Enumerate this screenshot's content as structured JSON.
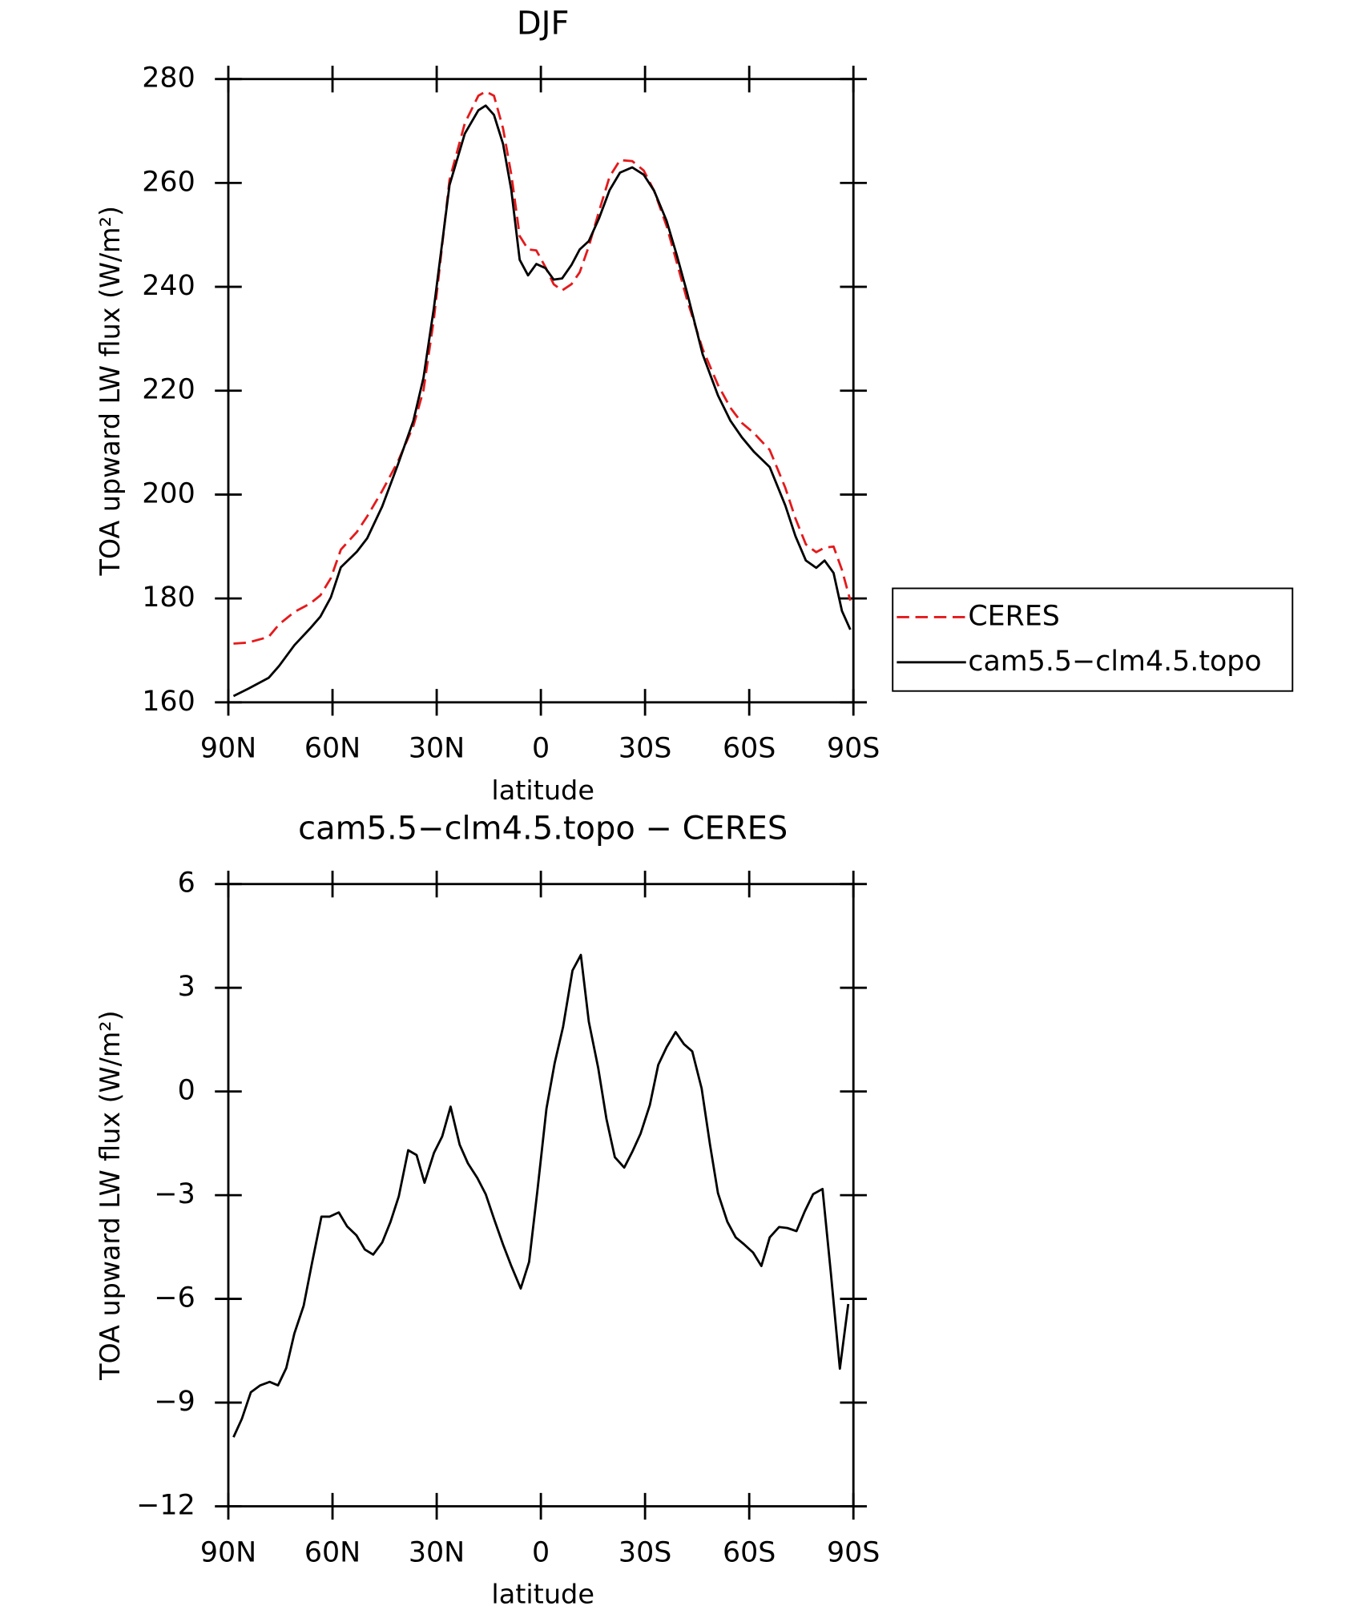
{
  "chart_data": [
    {
      "type": "line",
      "title": "DJF",
      "xlabel": "latitude",
      "ylabel": "TOA upward LW flux (W/m²)",
      "xlim": [
        90,
        -90
      ],
      "ylim": [
        160,
        280
      ],
      "xticks": [
        {
          "value": 90,
          "label": "90N"
        },
        {
          "value": 60,
          "label": "60N"
        },
        {
          "value": 30,
          "label": "30N"
        },
        0,
        {
          "value": -30,
          "label": "30S"
        },
        {
          "value": -60,
          "label": "60S"
        },
        {
          "value": -90,
          "label": "90S"
        }
      ],
      "yticks": [
        160,
        180,
        200,
        220,
        240,
        260,
        280
      ],
      "legend": "right",
      "x": [
        88.5,
        84.3,
        78.4,
        75.4,
        71,
        66.5,
        63.5,
        60.5,
        57.6,
        53,
        50,
        45.7,
        41.2,
        36.7,
        33.8,
        30.8,
        26.3,
        21.9,
        18,
        15.9,
        13.5,
        10.9,
        8.5,
        6.1,
        3.7,
        1.3,
        -1.3,
        -3.7,
        -6.1,
        -8.8,
        -11.2,
        -13.8,
        -16.8,
        -19.8,
        -22.8,
        -26.3,
        -29.6,
        -32.6,
        -36.2,
        -39.1,
        -42.1,
        -46.6,
        -51,
        -54.6,
        -57.9,
        -61.4,
        -65.9,
        -70.4,
        -73.3,
        -76.3,
        -79.3,
        -81.7,
        -84.3,
        -86.7,
        -89.1
      ],
      "series": [
        {
          "name": "CERES",
          "color": "#e41a1c",
          "dash": true,
          "values": [
            171.3,
            171.5,
            172.6,
            175,
            177.4,
            179,
            180.6,
            183.9,
            189.4,
            192.8,
            195.8,
            200.7,
            206.3,
            213.2,
            220.1,
            233.9,
            260.6,
            271.5,
            276.8,
            277.6,
            276.8,
            270.5,
            261.6,
            249.8,
            247.2,
            247,
            243.8,
            240.5,
            239.3,
            240.5,
            242.8,
            247.8,
            254.7,
            261.2,
            264.4,
            264.2,
            262.4,
            258.5,
            251.7,
            244.8,
            237.5,
            228,
            221.1,
            216.7,
            213.8,
            211.8,
            208.6,
            201.3,
            195.4,
            190.4,
            188.9,
            189.8,
            190,
            185.5,
            179.6
          ]
        },
        {
          "name": "cam5.5−clm4.5.topo",
          "color": "#000000",
          "dash": false,
          "values": [
            161.2,
            162.6,
            164.7,
            167,
            171,
            174.2,
            176.5,
            180.2,
            186,
            189,
            191.6,
            197.7,
            205.7,
            214.2,
            222.5,
            236,
            259.6,
            269.5,
            274,
            274.9,
            273.1,
            267.5,
            258.6,
            245.2,
            242.2,
            244.4,
            243.6,
            241.4,
            241.6,
            244.2,
            247.2,
            248.8,
            253.3,
            258.6,
            262,
            263,
            261.6,
            258.5,
            252.7,
            246.2,
            238.9,
            227,
            219.1,
            214.2,
            211,
            208.2,
            205.3,
            197.9,
            192,
            187.3,
            185.9,
            187.3,
            184.9,
            177.6,
            174
          ]
        }
      ]
    },
    {
      "type": "line",
      "title": "cam5.5−clm4.5.topo − CERES",
      "xlabel": "latitude",
      "ylabel": "TOA upward LW flux (W/m²)",
      "xlim": [
        90,
        -90
      ],
      "ylim": [
        -12,
        6
      ],
      "xticks": [
        {
          "value": 90,
          "label": "90N"
        },
        {
          "value": 60,
          "label": "60N"
        },
        {
          "value": 30,
          "label": "30N"
        },
        0,
        {
          "value": -30,
          "label": "30S"
        },
        {
          "value": -60,
          "label": "60S"
        },
        {
          "value": -90,
          "label": "90S"
        }
      ],
      "yticks": [
        -12,
        -9,
        -6,
        -3,
        0,
        3,
        6
      ],
      "x": [
        88.5,
        86.1,
        83.5,
        80.8,
        78.1,
        75.7,
        73.3,
        71,
        68.3,
        65.9,
        63.2,
        60.8,
        58.2,
        55.8,
        53.1,
        50.7,
        48.3,
        45.7,
        43.3,
        40.9,
        38.2,
        35.8,
        33.5,
        30.8,
        28.4,
        26,
        23.4,
        21,
        18.3,
        15.9,
        13.5,
        10.9,
        8.5,
        5.8,
        3.4,
        1,
        -1.6,
        -4,
        -6.4,
        -9.1,
        -11.5,
        -13.8,
        -16.5,
        -18.9,
        -21.3,
        -24,
        -26.3,
        -28.7,
        -31.4,
        -33.8,
        -36.2,
        -38.8,
        -41.2,
        -43.6,
        -46.3,
        -48.7,
        -51,
        -53.7,
        -56.1,
        -58.5,
        -61.1,
        -63.5,
        -65.9,
        -68.6,
        -71,
        -73.6,
        -76,
        -78.4,
        -81.1,
        -83.5,
        -86.1,
        -88.5
      ],
      "series": [
        {
          "color": "#000000",
          "dash": false,
          "values": [
            -10.0,
            -9.47,
            -8.7,
            -8.5,
            -8.4,
            -8.5,
            -8.0,
            -7.0,
            -6.2,
            -4.96,
            -3.62,
            -3.62,
            -3.5,
            -3.9,
            -4.16,
            -4.57,
            -4.72,
            -4.37,
            -3.77,
            -3.03,
            -1.7,
            -1.84,
            -2.64,
            -1.78,
            -1.3,
            -0.44,
            -1.54,
            -2.08,
            -2.5,
            -2.97,
            -3.68,
            -4.43,
            -5.05,
            -5.7,
            -4.93,
            -2.88,
            -0.5,
            0.83,
            1.87,
            3.5,
            3.95,
            2.02,
            0.68,
            -0.8,
            -1.9,
            -2.2,
            -1.75,
            -1.22,
            -0.39,
            0.77,
            1.28,
            1.72,
            1.37,
            1.16,
            0.09,
            -1.54,
            -2.94,
            -3.77,
            -4.22,
            -4.42,
            -4.66,
            -5.05,
            -4.22,
            -3.92,
            -3.95,
            -4.04,
            -3.47,
            -2.97,
            -2.82,
            -5.26,
            -8.02,
            -6.15
          ]
        }
      ]
    }
  ]
}
